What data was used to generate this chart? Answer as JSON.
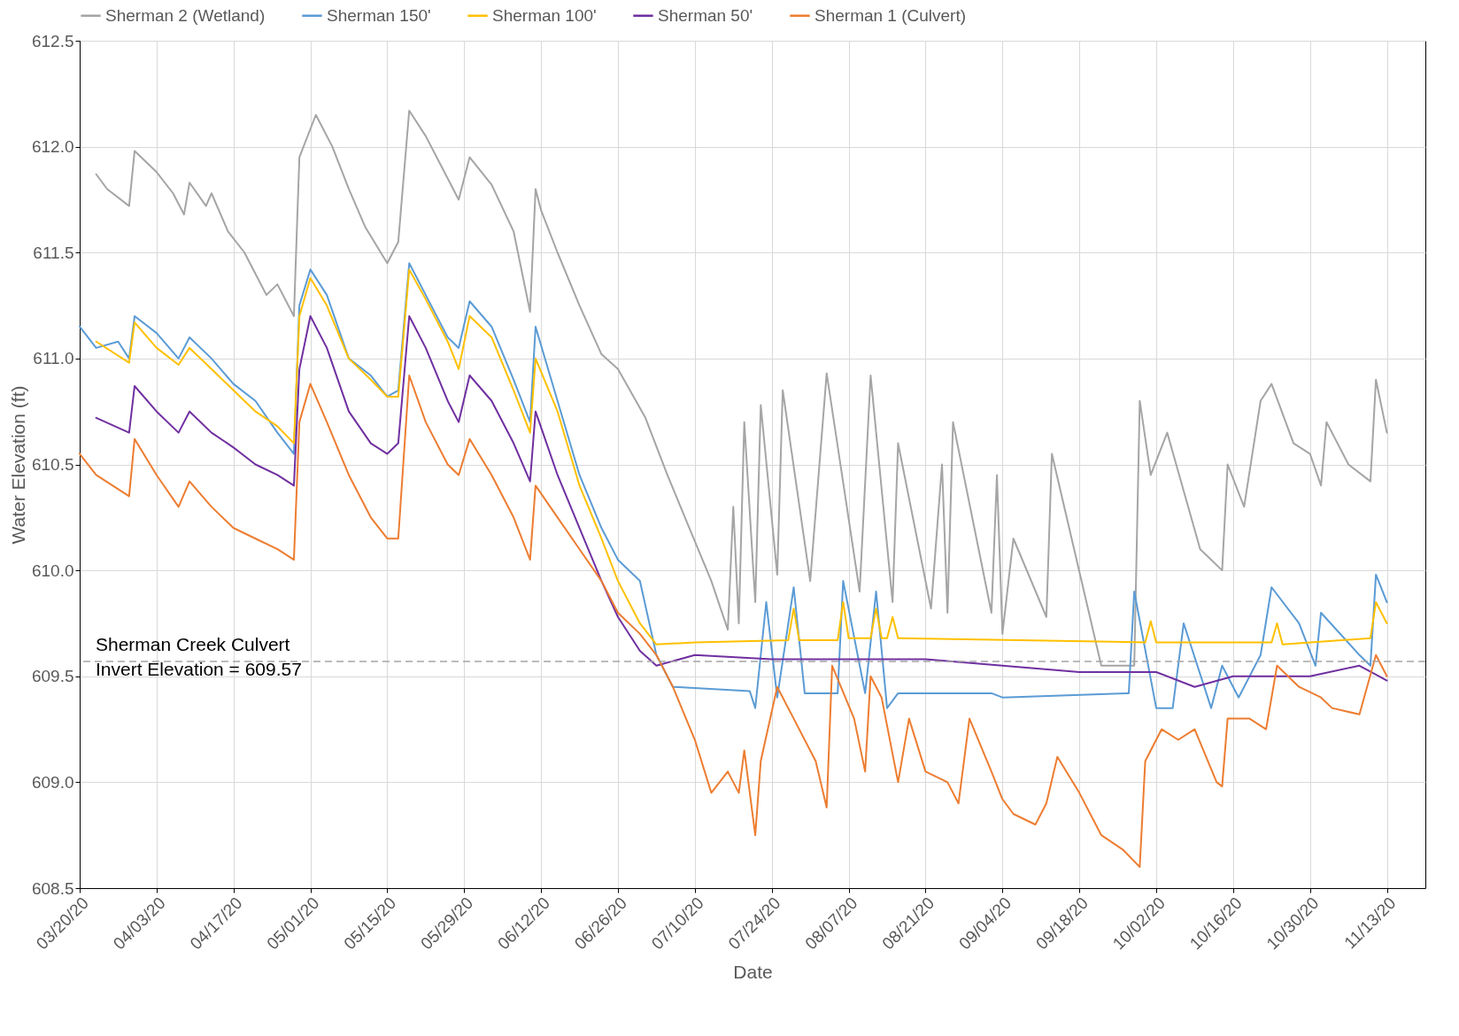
{
  "chart_data": {
    "type": "line",
    "xlabel": "Date",
    "ylabel": "Water Elevation (ft)",
    "legend": "top",
    "grid": true,
    "xlim": [
      "--03-20",
      "--11-20"
    ],
    "xticks": [
      {
        "value": "--03-20",
        "label": "03/20/20"
      },
      {
        "value": "--04-03",
        "label": "04/03/20"
      },
      {
        "value": "--04-17",
        "label": "04/17/20"
      },
      {
        "value": "--05-01",
        "label": "05/01/20"
      },
      {
        "value": "--05-15",
        "label": "05/15/20"
      },
      {
        "value": "--05-29",
        "label": "05/29/20"
      },
      {
        "value": "--06-12",
        "label": "06/12/20"
      },
      {
        "value": "--06-26",
        "label": "06/26/20"
      },
      {
        "value": "--07-10",
        "label": "07/10/20"
      },
      {
        "value": "--07-24",
        "label": "07/24/20"
      },
      {
        "value": "--08-07",
        "label": "08/07/20"
      },
      {
        "value": "--08-21",
        "label": "08/21/20"
      },
      {
        "value": "--09-04",
        "label": "09/04/20"
      },
      {
        "value": "--09-18",
        "label": "09/18/20"
      },
      {
        "value": "--10-02",
        "label": "10/02/20"
      },
      {
        "value": "--10-16",
        "label": "10/16/20"
      },
      {
        "value": "--10-30",
        "label": "10/30/20"
      },
      {
        "value": "--11-13",
        "label": "11/13/20"
      }
    ],
    "ylim": [
      608.5,
      612.5
    ],
    "yticks": [
      {
        "value": 608.5,
        "label": "608.5"
      },
      {
        "value": 609,
        "label": "609.0"
      },
      {
        "value": 609.5,
        "label": "609.5"
      },
      {
        "value": 610,
        "label": "610.0"
      },
      {
        "value": 610.5,
        "label": "610.5"
      },
      {
        "value": 611,
        "label": "611.0"
      },
      {
        "value": 611.5,
        "label": "611.5"
      },
      {
        "value": 612,
        "label": "612.0"
      },
      {
        "value": 612.5,
        "label": "612.5"
      }
    ],
    "ref_lines": [
      {
        "axis": "y",
        "value": 609.57,
        "label": "Sherman Creek Culvert\nInvert Elevation = 609.57",
        "color": "#a5a5a5",
        "line_style": "dashed"
      }
    ],
    "series": [
      {
        "name": "Sherman 2 (Wetland)",
        "color": "#a5a5a5",
        "x": [
          "--03-23",
          "--03-25",
          "--03-29",
          "--03-30",
          "--04-03",
          "--04-06",
          "--04-08",
          "--04-09",
          "--04-12",
          "--04-13",
          "--04-16",
          "--04-19",
          "--04-21",
          "--04-23",
          "--04-25",
          "--04-28",
          "--04-29",
          "--05-02",
          "--05-05",
          "--05-08",
          "--05-11",
          "--05-15",
          "--05-17",
          "--05-19",
          "--05-22",
          "--05-25",
          "--05-28",
          "--05-30",
          "--06-03",
          "--06-07",
          "--06-10",
          "--06-11",
          "--06-12",
          "--06-15",
          "--06-19",
          "--06-23",
          "--06-26",
          "--07-01",
          "--07-05",
          "--07-09",
          "--07-13",
          "--07-16",
          "--07-17",
          "--07-18",
          "--07-19",
          "--07-21",
          "--07-22",
          "--07-25",
          "--07-26",
          "--07-31",
          "--08-03",
          "--08-09",
          "--08-11",
          "--08-15",
          "--08-16",
          "--08-22",
          "--08-24",
          "--08-25",
          "--08-26",
          "--09-02",
          "--09-03",
          "--09-04",
          "--09-06",
          "--09-12",
          "--09-13",
          "--09-22",
          "--09-28",
          "--09-29",
          "--10-01",
          "--10-04",
          "--10-10",
          "--10-14",
          "--10-15",
          "--10-18",
          "--10-21",
          "--10-23",
          "--10-27",
          "--10-30",
          "--11-01",
          "--11-02",
          "--11-06",
          "--11-10",
          "--11-11",
          "--11-13"
        ],
        "values": [
          611.87,
          611.8,
          611.72,
          611.98,
          611.88,
          611.78,
          611.68,
          611.83,
          611.72,
          611.78,
          611.6,
          611.5,
          611.4,
          611.3,
          611.35,
          611.2,
          611.95,
          612.15,
          612.0,
          611.8,
          611.62,
          611.45,
          611.55,
          612.17,
          612.05,
          611.9,
          611.75,
          611.95,
          611.82,
          611.6,
          611.22,
          611.8,
          611.7,
          611.5,
          611.25,
          611.02,
          610.95,
          610.72,
          610.45,
          610.2,
          609.95,
          609.72,
          610.3,
          609.75,
          610.7,
          609.85,
          610.78,
          609.98,
          610.85,
          609.95,
          610.93,
          609.9,
          610.92,
          609.85,
          610.6,
          609.82,
          610.5,
          609.8,
          610.7,
          609.8,
          610.45,
          609.7,
          610.15,
          609.78,
          610.55,
          609.55,
          609.55,
          610.8,
          610.45,
          610.65,
          610.1,
          610.0,
          610.5,
          610.3,
          610.8,
          610.88,
          610.6,
          610.55,
          610.4,
          610.7,
          610.5,
          610.42,
          610.9,
          610.65
        ]
      },
      {
        "name": "Sherman 150'",
        "color": "#5b9bd5",
        "x": [
          "--03-20",
          "--03-23",
          "--03-27",
          "--03-29",
          "--03-30",
          "--04-03",
          "--04-07",
          "--04-09",
          "--04-13",
          "--04-17",
          "--04-21",
          "--04-25",
          "--04-28",
          "--04-29",
          "--05-01",
          "--05-04",
          "--05-08",
          "--05-12",
          "--05-15",
          "--05-17",
          "--05-19",
          "--05-22",
          "--05-26",
          "--05-28",
          "--05-30",
          "--06-03",
          "--06-07",
          "--06-10",
          "--06-11",
          "--06-15",
          "--06-19",
          "--06-23",
          "--06-26",
          "--06-30",
          "--07-03",
          "--07-06",
          "--07-20",
          "--07-21",
          "--07-23",
          "--07-25",
          "--07-28",
          "--07-30",
          "--08-05",
          "--08-06",
          "--08-10",
          "--08-12",
          "--08-14",
          "--08-16",
          "--09-02",
          "--09-04",
          "--09-27",
          "--09-28",
          "--10-02",
          "--10-05",
          "--10-07",
          "--10-12",
          "--10-14",
          "--10-17",
          "--10-21",
          "--10-23",
          "--10-28",
          "--10-31",
          "--11-01",
          "--11-08",
          "--11-10",
          "--11-11",
          "--11-13"
        ],
        "values": [
          611.15,
          611.05,
          611.08,
          611.0,
          611.2,
          611.12,
          611.0,
          611.1,
          611.0,
          610.88,
          610.8,
          610.65,
          610.55,
          611.25,
          611.42,
          611.3,
          611.0,
          610.92,
          610.82,
          610.85,
          611.45,
          611.3,
          611.1,
          611.05,
          611.27,
          611.15,
          610.9,
          610.7,
          611.15,
          610.8,
          610.45,
          610.2,
          610.05,
          609.95,
          609.6,
          609.45,
          609.43,
          609.35,
          609.85,
          609.4,
          609.92,
          609.42,
          609.42,
          609.95,
          609.42,
          609.9,
          609.35,
          609.42,
          609.42,
          609.4,
          609.42,
          609.9,
          609.35,
          609.35,
          609.75,
          609.35,
          609.55,
          609.4,
          609.6,
          609.92,
          609.75,
          609.55,
          609.8,
          609.6,
          609.55,
          609.98,
          609.85
        ]
      },
      {
        "name": "Sherman 100'",
        "color": "#ffc000",
        "x": [
          "--03-23",
          "--03-29",
          "--03-30",
          "--04-03",
          "--04-07",
          "--04-09",
          "--04-13",
          "--04-17",
          "--04-21",
          "--04-25",
          "--04-28",
          "--04-29",
          "--05-01",
          "--05-04",
          "--05-08",
          "--05-12",
          "--05-15",
          "--05-17",
          "--05-19",
          "--05-22",
          "--05-26",
          "--05-28",
          "--05-30",
          "--06-03",
          "--06-07",
          "--06-10",
          "--06-11",
          "--06-15",
          "--06-19",
          "--06-23",
          "--06-26",
          "--06-30",
          "--07-03",
          "--07-10",
          "--07-27",
          "--07-28",
          "--07-29",
          "--08-05",
          "--08-06",
          "--08-07",
          "--08-11",
          "--08-12",
          "--08-13",
          "--08-14",
          "--08-15",
          "--08-16",
          "--09-30",
          "--10-01",
          "--10-02",
          "--10-23",
          "--10-24",
          "--10-25",
          "--11-10",
          "--11-11",
          "--11-13"
        ],
        "values": [
          611.08,
          610.98,
          611.17,
          611.05,
          610.97,
          611.05,
          610.95,
          610.85,
          610.75,
          610.68,
          610.6,
          611.2,
          611.38,
          611.25,
          611.0,
          610.9,
          610.82,
          610.82,
          611.42,
          611.28,
          611.08,
          610.95,
          611.2,
          611.1,
          610.85,
          610.65,
          611.0,
          610.75,
          610.4,
          610.15,
          609.95,
          609.75,
          609.65,
          609.66,
          609.67,
          609.82,
          609.67,
          609.67,
          609.85,
          609.68,
          609.68,
          609.82,
          609.68,
          609.68,
          609.78,
          609.68,
          609.66,
          609.76,
          609.66,
          609.66,
          609.75,
          609.65,
          609.68,
          609.85,
          609.75
        ]
      },
      {
        "name": "Sherman 50'",
        "color": "#7030a0",
        "x": [
          "--03-23",
          "--03-29",
          "--03-30",
          "--04-03",
          "--04-07",
          "--04-09",
          "--04-13",
          "--04-17",
          "--04-21",
          "--04-25",
          "--04-28",
          "--04-29",
          "--05-01",
          "--05-04",
          "--05-08",
          "--05-12",
          "--05-15",
          "--05-17",
          "--05-19",
          "--05-22",
          "--05-26",
          "--05-28",
          "--05-30",
          "--06-03",
          "--06-07",
          "--06-10",
          "--06-11",
          "--06-15",
          "--06-19",
          "--06-23",
          "--06-26",
          "--06-30",
          "--07-03",
          "--07-10",
          "--07-24",
          "--08-21",
          "--09-04",
          "--09-18",
          "--10-02",
          "--10-09",
          "--10-16",
          "--10-30",
          "--11-08",
          "--11-13"
        ],
        "values": [
          610.72,
          610.65,
          610.87,
          610.75,
          610.65,
          610.75,
          610.65,
          610.58,
          610.5,
          610.45,
          610.4,
          610.95,
          611.2,
          611.05,
          610.75,
          610.6,
          610.55,
          610.6,
          611.2,
          611.05,
          610.8,
          610.7,
          610.92,
          610.8,
          610.6,
          610.42,
          610.75,
          610.45,
          610.2,
          609.95,
          609.78,
          609.62,
          609.55,
          609.6,
          609.58,
          609.58,
          609.55,
          609.52,
          609.52,
          609.45,
          609.5,
          609.5,
          609.55,
          609.48
        ]
      },
      {
        "name": "Sherman 1 (Culvert)",
        "color": "#ed7d31",
        "x": [
          "--03-20",
          "--03-23",
          "--03-29",
          "--03-30",
          "--04-03",
          "--04-07",
          "--04-09",
          "--04-13",
          "--04-17",
          "--04-21",
          "--04-25",
          "--04-28",
          "--04-29",
          "--05-01",
          "--05-04",
          "--05-08",
          "--05-12",
          "--05-15",
          "--05-17",
          "--05-19",
          "--05-22",
          "--05-26",
          "--05-28",
          "--05-30",
          "--06-03",
          "--06-07",
          "--06-10",
          "--06-11",
          "--06-15",
          "--06-19",
          "--06-23",
          "--06-26",
          "--06-30",
          "--07-03",
          "--07-06",
          "--07-10",
          "--07-13",
          "--07-16",
          "--07-18",
          "--07-19",
          "--07-21",
          "--07-22",
          "--07-25",
          "--07-28",
          "--08-01",
          "--08-03",
          "--08-04",
          "--08-08",
          "--08-10",
          "--08-11",
          "--08-13",
          "--08-16",
          "--08-18",
          "--08-21",
          "--08-25",
          "--08-27",
          "--08-29",
          "--09-02",
          "--09-04",
          "--09-06",
          "--09-10",
          "--09-12",
          "--09-14",
          "--09-18",
          "--09-22",
          "--09-26",
          "--09-29",
          "--09-30",
          "--10-03",
          "--10-06",
          "--10-09",
          "--10-13",
          "--10-14",
          "--10-15",
          "--10-19",
          "--10-22",
          "--10-24",
          "--10-28",
          "--11-01",
          "--11-03",
          "--11-08",
          "--11-11",
          "--11-13"
        ],
        "values": [
          610.55,
          610.45,
          610.35,
          610.62,
          610.45,
          610.3,
          610.42,
          610.3,
          610.2,
          610.15,
          610.1,
          610.05,
          610.7,
          610.88,
          610.7,
          610.45,
          610.25,
          610.15,
          610.15,
          610.92,
          610.7,
          610.5,
          610.45,
          610.62,
          610.45,
          610.25,
          610.05,
          610.4,
          610.25,
          610.1,
          609.95,
          609.8,
          609.7,
          609.6,
          609.45,
          609.2,
          608.95,
          609.05,
          608.95,
          609.15,
          608.75,
          609.1,
          609.45,
          609.3,
          609.1,
          608.88,
          609.55,
          609.3,
          609.05,
          609.5,
          609.4,
          609.0,
          609.3,
          609.05,
          609.0,
          608.9,
          609.3,
          609.05,
          608.92,
          608.85,
          608.8,
          608.9,
          609.12,
          608.95,
          608.75,
          608.68,
          608.6,
          609.1,
          609.25,
          609.2,
          609.25,
          609.0,
          608.98,
          609.3,
          609.3,
          609.25,
          609.55,
          609.45,
          609.4,
          609.35,
          609.32,
          609.6,
          609.5
        ]
      }
    ]
  }
}
